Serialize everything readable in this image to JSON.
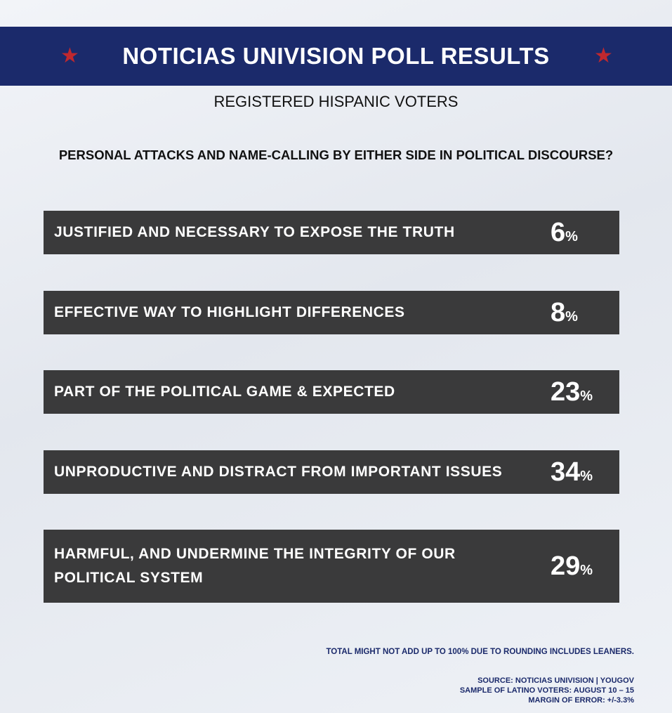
{
  "header": {
    "title": "NOTICIAS UNIVISION POLL RESULTS",
    "subtitle": "REGISTERED HISPANIC VOTERS"
  },
  "question": "PERSONAL ATTACKS AND NAME-CALLING BY EITHER SIDE IN POLITICAL DISCOURSE?",
  "rows": [
    {
      "label": "JUSTIFIED AND NECESSARY TO EXPOSE THE TRUTH",
      "value": 6,
      "unit": "%"
    },
    {
      "label": "EFFECTIVE WAY TO HIGHLIGHT DIFFERENCES",
      "value": 8,
      "unit": "%"
    },
    {
      "label": "PART OF THE POLITICAL GAME & EXPECTED",
      "value": 23,
      "unit": "%"
    },
    {
      "label": "UNPRODUCTIVE AND DISTRACT FROM IMPORTANT ISSUES",
      "value": 34,
      "unit": "%"
    },
    {
      "label": "HARMFUL, AND UNDERMINE THE INTEGRITY OF OUR POLITICAL SYSTEM",
      "value": 29,
      "unit": "%"
    }
  ],
  "footer": {
    "note": "TOTAL MIGHT NOT ADD UP TO 100% DUE TO ROUNDING INCLUDES LEANERS.",
    "source": [
      "SOURCE: NOTICIAS UNIVISION | YOUGOV",
      "SAMPLE OF LATINO VOTERS: AUGUST 10 – 15",
      "MARGIN OF ERROR: +/-3.3%"
    ]
  }
}
